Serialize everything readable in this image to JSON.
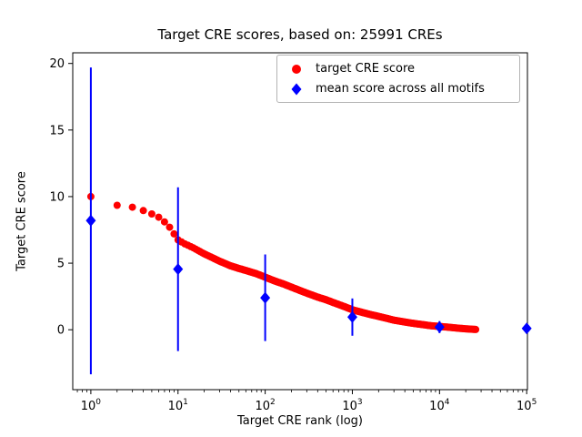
{
  "title": "Target CRE scores, based on: 25991 CREs",
  "xlabel": "Target CRE rank (log)",
  "ylabel": "Target CRE score",
  "legend": {
    "items": [
      {
        "label": "target CRE score",
        "marker": "circle",
        "color": "#ff0000"
      },
      {
        "label": "mean score across all motifs",
        "marker": "diamond",
        "color": "#0000ff"
      }
    ]
  },
  "chart_data": {
    "type": "scatter",
    "x_scale": "log",
    "xlim": [
      0.62,
      102000
    ],
    "ylim": [
      -4.5,
      20.8
    ],
    "x_ticks": [
      1,
      10,
      100,
      1000,
      10000,
      100000
    ],
    "y_ticks": [
      0,
      5,
      10,
      15,
      20
    ],
    "grid": false,
    "legend_position": "upper right inside",
    "series": [
      {
        "name": "target CRE score",
        "type": "scatter-curve",
        "color": "#ff0000",
        "n_total": 25991,
        "anchors": [
          [
            1,
            10.0
          ],
          [
            2,
            9.35
          ],
          [
            3,
            9.2
          ],
          [
            4,
            8.95
          ],
          [
            5,
            8.7
          ],
          [
            6,
            8.45
          ],
          [
            7,
            8.1
          ],
          [
            8,
            7.7
          ],
          [
            9,
            7.2
          ],
          [
            10,
            6.75
          ],
          [
            12,
            6.45
          ],
          [
            15,
            6.15
          ],
          [
            20,
            5.7
          ],
          [
            25,
            5.4
          ],
          [
            30,
            5.15
          ],
          [
            40,
            4.8
          ],
          [
            50,
            4.6
          ],
          [
            60,
            4.45
          ],
          [
            80,
            4.2
          ],
          [
            100,
            3.95
          ],
          [
            130,
            3.65
          ],
          [
            160,
            3.45
          ],
          [
            200,
            3.2
          ],
          [
            250,
            2.95
          ],
          [
            300,
            2.75
          ],
          [
            400,
            2.45
          ],
          [
            500,
            2.25
          ],
          [
            600,
            2.05
          ],
          [
            800,
            1.75
          ],
          [
            1000,
            1.5
          ],
          [
            1300,
            1.3
          ],
          [
            1600,
            1.15
          ],
          [
            2000,
            1.0
          ],
          [
            2500,
            0.85
          ],
          [
            3000,
            0.72
          ],
          [
            4000,
            0.58
          ],
          [
            5000,
            0.48
          ],
          [
            6500,
            0.38
          ],
          [
            8000,
            0.3
          ],
          [
            10000,
            0.25
          ],
          [
            13000,
            0.18
          ],
          [
            16000,
            0.12
          ],
          [
            20000,
            0.07
          ],
          [
            26000,
            0.02
          ]
        ]
      },
      {
        "name": "mean score across all motifs",
        "type": "errorbar",
        "color": "#0000ff",
        "points": [
          {
            "x": 1,
            "mean": 8.2,
            "low": -3.35,
            "high": 19.7
          },
          {
            "x": 10,
            "mean": 4.55,
            "low": -1.6,
            "high": 10.7
          },
          {
            "x": 100,
            "mean": 2.4,
            "low": -0.85,
            "high": 5.65
          },
          {
            "x": 1000,
            "mean": 0.95,
            "low": -0.45,
            "high": 2.35
          },
          {
            "x": 10000,
            "mean": 0.2,
            "low": -0.25,
            "high": 0.65
          },
          {
            "x": 100000,
            "mean": 0.1,
            "low": 0.05,
            "high": 0.15
          }
        ]
      }
    ]
  }
}
